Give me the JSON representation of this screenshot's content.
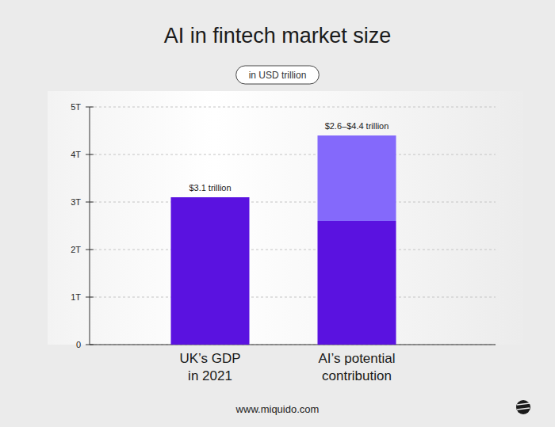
{
  "chart_data": {
    "type": "bar",
    "title": "AI in fintech market size",
    "subtitle": "in USD trillion",
    "categories": [
      "UK’s GDP\nin 2021",
      "AI’s potential\ncontribution"
    ],
    "series": [
      {
        "color": "#5a12e0",
        "values": [
          3.1,
          2.6
        ]
      },
      {
        "color": "#8469fb",
        "values": [
          null,
          1.8
        ]
      }
    ],
    "stacked": true,
    "annotations": [
      "$3.1 trillion",
      "$2.6–$4.4 trillion"
    ],
    "ylim": [
      0,
      5
    ],
    "yticks": [
      0,
      {
        "value": 1,
        "label": "1T"
      },
      {
        "value": 2,
        "label": "2T"
      },
      {
        "value": 3,
        "label": "3T"
      },
      {
        "value": 4,
        "label": "4T"
      },
      {
        "value": 5,
        "label": "5T"
      }
    ],
    "grid": true,
    "source": "www.miquido.com"
  }
}
